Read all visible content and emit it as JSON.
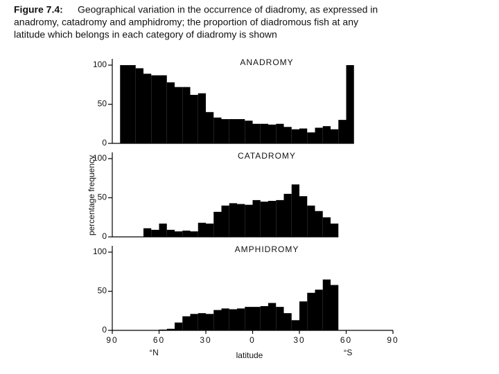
{
  "figure_label": "Figure 7.4:",
  "caption_lines": [
    "Geographical variation in the occurrence of diadromy, as expressed in",
    "anadromy, catadromy and amphidromy; the proportion of diadromous fish at any",
    "latitude which belongs in each category of diadromy is shown"
  ],
  "y_label": "percentage frequency",
  "chart_data": [
    {
      "type": "histogram",
      "title": "ANADROMY",
      "color": "#000000",
      "bins": [
        -85,
        -80,
        -75,
        -70,
        -65,
        -60,
        -55,
        -50,
        -45,
        -40,
        -35,
        -30,
        -25,
        -20,
        -15,
        -10,
        -5,
        0,
        5,
        10,
        15,
        20,
        25,
        30,
        35,
        40,
        45,
        50,
        55,
        60,
        65
      ],
      "values": [
        100,
        100,
        96,
        89,
        87,
        87,
        78,
        72,
        72,
        62,
        64,
        40,
        33,
        31,
        31,
        31,
        29,
        25,
        25,
        24,
        25,
        21,
        18,
        19,
        14,
        20,
        22,
        18,
        30,
        100
      ],
      "xlim": [
        -90,
        90
      ],
      "ylim": [
        0,
        108
      ],
      "yticks": [
        0,
        50,
        100
      ]
    },
    {
      "type": "histogram",
      "title": "CATADROMY",
      "color": "#000000",
      "bins": [
        -70,
        -65,
        -60,
        -55,
        -50,
        -45,
        -40,
        -35,
        -30,
        -25,
        -20,
        -15,
        -10,
        -5,
        0,
        5,
        10,
        15,
        20,
        25,
        30,
        35,
        40,
        45,
        50,
        55
      ],
      "values": [
        11,
        9,
        17,
        9,
        7,
        8,
        7,
        18,
        17,
        32,
        40,
        43,
        42,
        41,
        47,
        45,
        46,
        47,
        55,
        67,
        52,
        40,
        33,
        25,
        17
      ],
      "xlim": [
        -90,
        90
      ],
      "ylim": [
        0,
        108
      ],
      "yticks": [
        0,
        50,
        100
      ]
    },
    {
      "type": "histogram",
      "title": "AMPHIDROMY",
      "color": "#000000",
      "bins": [
        -60,
        -55,
        -50,
        -45,
        -40,
        -35,
        -30,
        -25,
        -20,
        -15,
        -10,
        -5,
        0,
        5,
        10,
        15,
        20,
        25,
        30,
        35,
        40,
        45,
        50,
        55
      ],
      "values": [
        1,
        2,
        10,
        18,
        21,
        22,
        21,
        26,
        28,
        27,
        28,
        30,
        30,
        31,
        35,
        30,
        22,
        13,
        37,
        48,
        52,
        65,
        58
      ],
      "xlim": [
        -90,
        90
      ],
      "ylim": [
        0,
        108
      ],
      "yticks": [
        0,
        50,
        100
      ],
      "xticks": [
        {
          "value": -90,
          "label": "90"
        },
        {
          "value": -60,
          "label": "60"
        },
        {
          "value": -30,
          "label": "30"
        },
        0,
        {
          "value": 30,
          "label": "30"
        },
        {
          "value": 60,
          "label": "60"
        },
        90
      ],
      "x_label": "latitude",
      "x_left_label": "°N",
      "x_right_label": "°S"
    }
  ]
}
